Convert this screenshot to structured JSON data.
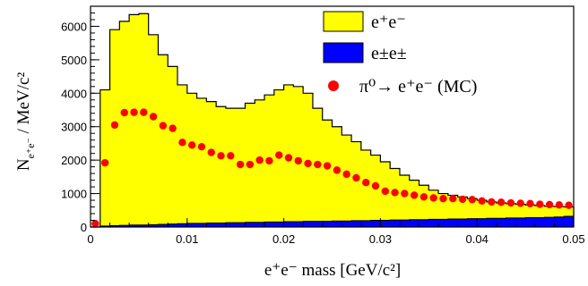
{
  "chart_data": {
    "type": "histogram",
    "xlabel": "e⁺e⁻ mass [GeV/c²]",
    "ylabel": "N / MeV/c²",
    "ylabel_subscript": "e⁺e⁻",
    "xlim": [
      0,
      0.05
    ],
    "ylim": [
      0,
      6600
    ],
    "xticks": [
      0,
      0.01,
      0.02,
      0.03,
      0.04,
      0.05
    ],
    "xtick_labels": [
      "0",
      "0.01",
      "0.02",
      "0.03",
      "0.04",
      "0.05"
    ],
    "yticks": [
      0,
      1000,
      2000,
      3000,
      4000,
      5000,
      6000
    ],
    "ytick_labels": [
      "0",
      "1000",
      "2000",
      "3000",
      "4000",
      "5000",
      "6000"
    ],
    "bin_edges": [
      0.0,
      0.001,
      0.002,
      0.003,
      0.004,
      0.005,
      0.006,
      0.007,
      0.008,
      0.009,
      0.01,
      0.011,
      0.012,
      0.013,
      0.014,
      0.015,
      0.016,
      0.017,
      0.018,
      0.019,
      0.02,
      0.021,
      0.022,
      0.023,
      0.024,
      0.025,
      0.026,
      0.027,
      0.028,
      0.029,
      0.03,
      0.031,
      0.032,
      0.033,
      0.034,
      0.035,
      0.036,
      0.037,
      0.038,
      0.039,
      0.04,
      0.041,
      0.042,
      0.043,
      0.044,
      0.045,
      0.046,
      0.047,
      0.048,
      0.049,
      0.05
    ],
    "series": [
      {
        "name": "e⁺e⁻",
        "kind": "filled-histogram",
        "color": "#ffff00",
        "values": [
          0,
          4100,
          5900,
          6150,
          6350,
          6380,
          5750,
          5150,
          4800,
          4250,
          4000,
          3850,
          3750,
          3600,
          3550,
          3550,
          3700,
          3800,
          3950,
          4100,
          4250,
          4200,
          4000,
          3550,
          3200,
          3000,
          2750,
          2550,
          2300,
          2150,
          1950,
          1750,
          1550,
          1400,
          1250,
          1100,
          1000,
          950,
          900,
          850,
          800,
          750,
          720,
          700,
          680,
          660,
          640,
          620,
          610,
          600
        ]
      },
      {
        "name": "e±e±",
        "kind": "filled-histogram",
        "color": "#0000ff",
        "values": [
          0,
          30,
          40,
          50,
          60,
          60,
          70,
          80,
          90,
          100,
          110,
          110,
          120,
          120,
          130,
          130,
          140,
          140,
          150,
          150,
          160,
          160,
          170,
          170,
          170,
          180,
          180,
          190,
          190,
          200,
          200,
          210,
          210,
          220,
          220,
          230,
          230,
          240,
          240,
          250,
          250,
          260,
          260,
          270,
          270,
          280,
          280,
          290,
          300,
          320
        ]
      },
      {
        "name": "π⁰→ e⁺e⁻ (MC)",
        "kind": "markers",
        "color": "#ff0000",
        "x": [
          0.0005,
          0.0015,
          0.0025,
          0.0035,
          0.0045,
          0.0055,
          0.0065,
          0.0075,
          0.0085,
          0.0095,
          0.0105,
          0.0115,
          0.0125,
          0.0135,
          0.0145,
          0.0155,
          0.0165,
          0.0175,
          0.0185,
          0.0195,
          0.0205,
          0.0215,
          0.0225,
          0.0235,
          0.0245,
          0.0255,
          0.0265,
          0.0275,
          0.0285,
          0.0295,
          0.0305,
          0.0315,
          0.0325,
          0.0335,
          0.0345,
          0.0355,
          0.0365,
          0.0375,
          0.0385,
          0.0395,
          0.0405,
          0.0415,
          0.0425,
          0.0435,
          0.0445,
          0.0455,
          0.0465,
          0.0475,
          0.0485,
          0.0495
        ],
        "values": [
          100,
          1920,
          3050,
          3420,
          3430,
          3430,
          3300,
          3030,
          2950,
          2530,
          2450,
          2400,
          2230,
          2130,
          2130,
          1870,
          1870,
          2000,
          1980,
          2150,
          2070,
          1980,
          1900,
          1870,
          1830,
          1700,
          1580,
          1470,
          1330,
          1230,
          1070,
          1030,
          1000,
          950,
          900,
          870,
          850,
          850,
          830,
          820,
          780,
          750,
          740,
          720,
          710,
          700,
          680,
          670,
          660,
          650
        ]
      }
    ],
    "legend_position": "top-right",
    "grid": false
  }
}
